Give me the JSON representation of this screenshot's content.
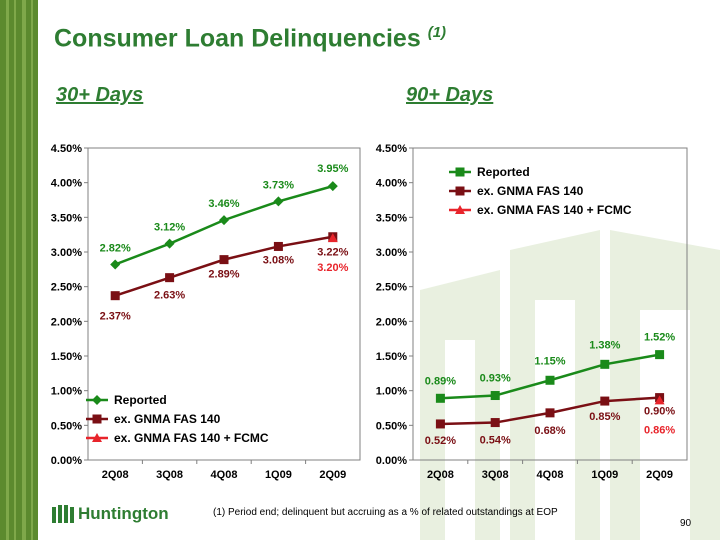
{
  "page": {
    "title": "Consumer Loan Delinquencies",
    "title_footnote_ref": "(1)",
    "footnote": "(1) Period end; delinquent but accruing as a % of related outstandings at EOP",
    "page_number": "90",
    "logo_text": "Huntington",
    "colors": {
      "green": "#1a8a1a",
      "maroon": "#7a0f14",
      "red": "#e8242b",
      "title_green": "#2e7d32"
    }
  },
  "chart_data": [
    {
      "type": "line",
      "title": "30+ Days",
      "categories": [
        "2Q08",
        "3Q08",
        "4Q08",
        "1Q09",
        "2Q09"
      ],
      "ylim": [
        0,
        4.5
      ],
      "yticks": [
        "0.00%",
        "0.50%",
        "1.00%",
        "1.50%",
        "2.00%",
        "2.50%",
        "3.00%",
        "3.50%",
        "4.00%",
        "4.50%"
      ],
      "legend_position": "bottom-left",
      "series": [
        {
          "name": "Reported",
          "marker": "diamond",
          "values": [
            2.82,
            3.12,
            3.46,
            3.73,
            3.95
          ],
          "labels": [
            "2.82%",
            "3.12%",
            "3.46%",
            "3.73%",
            "3.95%"
          ]
        },
        {
          "name": "ex. GNMA FAS 140",
          "marker": "square",
          "values": [
            2.37,
            2.63,
            2.89,
            3.08,
            3.22
          ],
          "labels": [
            "2.37%",
            "2.63%",
            "2.89%",
            "3.08%",
            "3.22%"
          ]
        },
        {
          "name": "ex. GNMA FAS 140 + FCMC",
          "marker": "triangle",
          "values": [
            null,
            null,
            null,
            null,
            3.2
          ],
          "labels": [
            "",
            "",
            "",
            "",
            "3.20%"
          ]
        }
      ]
    },
    {
      "type": "line",
      "title": "90+ Days",
      "categories": [
        "2Q08",
        "3Q08",
        "4Q08",
        "1Q09",
        "2Q09"
      ],
      "ylim": [
        0,
        4.5
      ],
      "yticks": [
        "0.00%",
        "0.50%",
        "1.00%",
        "1.50%",
        "2.00%",
        "2.50%",
        "3.00%",
        "3.50%",
        "4.00%",
        "4.50%"
      ],
      "legend_position": "top-left",
      "series": [
        {
          "name": "Reported",
          "marker": "square",
          "values": [
            0.89,
            0.93,
            1.15,
            1.38,
            1.52
          ],
          "labels": [
            "0.89%",
            "0.93%",
            "1.15%",
            "1.38%",
            "1.52%"
          ]
        },
        {
          "name": "ex. GNMA FAS 140",
          "marker": "square",
          "values": [
            0.52,
            0.54,
            0.68,
            0.85,
            0.9
          ],
          "labels": [
            "0.52%",
            "0.54%",
            "0.68%",
            "0.85%",
            "0.90%"
          ]
        },
        {
          "name": "ex. GNMA FAS 140 + FCMC",
          "marker": "triangle",
          "values": [
            null,
            null,
            null,
            null,
            0.86
          ],
          "labels": [
            "",
            "",
            "",
            "",
            "0.86%"
          ]
        }
      ]
    }
  ]
}
